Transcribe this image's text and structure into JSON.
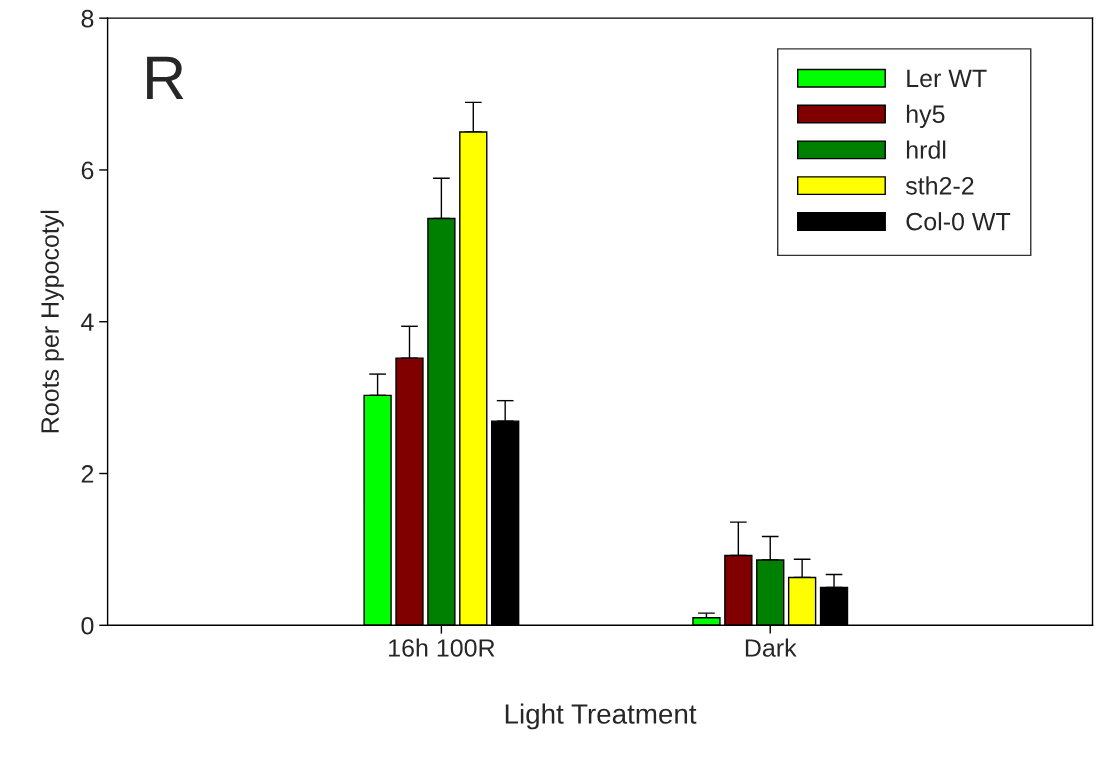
{
  "chart_data": {
    "type": "bar",
    "xlabel": "Light Treatment",
    "ylabel": "Roots per Hypocotyl",
    "categories": [
      "16h 100R",
      "Dark"
    ],
    "series": [
      {
        "name": "Ler WT",
        "color": "#00ff00",
        "values": [
          3.03,
          0.1
        ],
        "errors": [
          [
            3.03,
            3.31
          ],
          [
            0.1,
            0.16
          ]
        ]
      },
      {
        "name": "hy5",
        "color": "#800000",
        "values": [
          3.52,
          0.92
        ],
        "errors": [
          [
            3.52,
            3.94
          ],
          [
            0.92,
            1.36
          ]
        ]
      },
      {
        "name": "hrdl",
        "color": "#008000",
        "values": [
          5.36,
          0.86
        ],
        "errors": [
          [
            5.36,
            5.89
          ],
          [
            0.86,
            1.17
          ]
        ]
      },
      {
        "name": "sth2-2",
        "color": "#ffff00",
        "values": [
          6.5,
          0.63
        ],
        "errors": [
          [
            6.5,
            6.89
          ],
          [
            0.63,
            0.87
          ]
        ]
      },
      {
        "name": "Col-0 WT",
        "color": "#000000",
        "values": [
          2.69,
          0.5
        ],
        "errors": [
          [
            2.69,
            2.96
          ],
          [
            0.5,
            0.67
          ]
        ]
      }
    ],
    "ylim": [
      0,
      8
    ],
    "yticks": [
      0,
      2,
      4,
      6,
      8
    ],
    "legend": "top right",
    "grid": false,
    "annotations": [
      "R"
    ]
  }
}
